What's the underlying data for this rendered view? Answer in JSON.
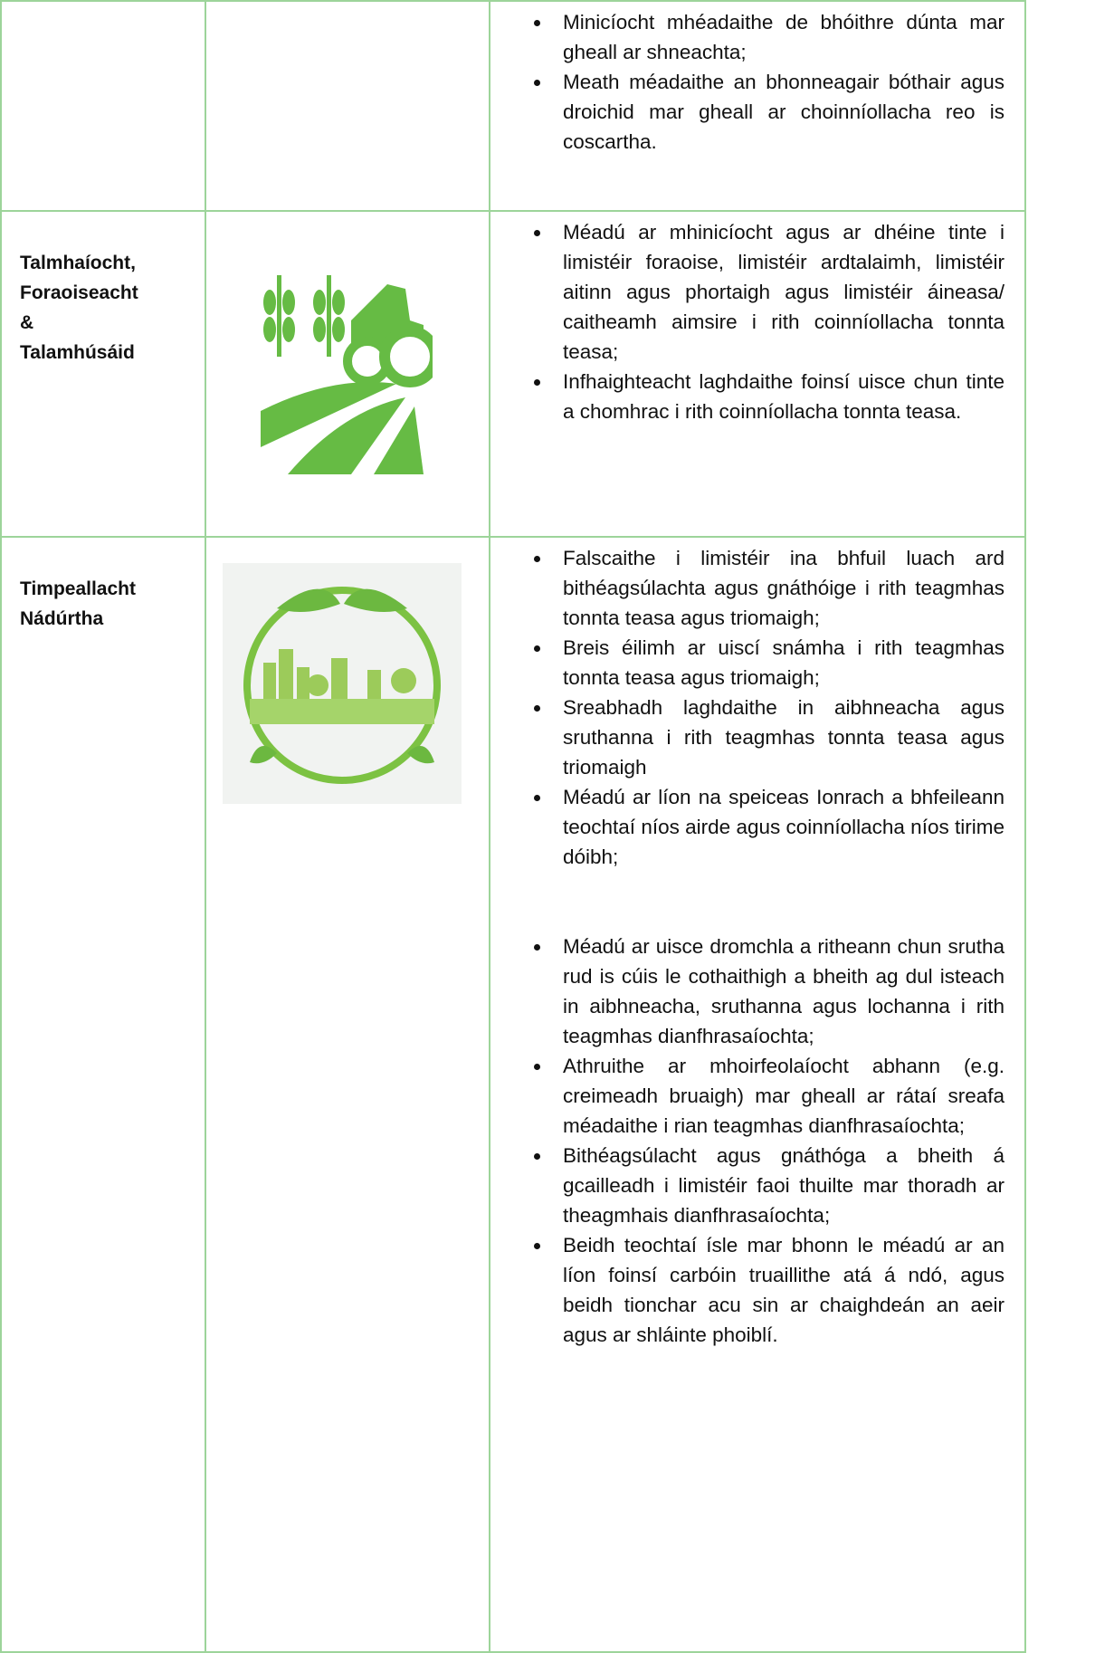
{
  "table": {
    "rows": [
      {
        "label_lines": [],
        "bullets": [
          "Minicíocht mhéadaithe de bhóithre dúnta mar gheall ar shneachta;",
          "Meath méadaithe an bhonneagair bóthair agus droichid mar gheall ar choinníollacha reo is coscartha."
        ]
      },
      {
        "label_lines": [
          "Talmhaíocht,",
          "Foraoiseacht",
          "&",
          "Talamhúsáid"
        ],
        "bullets": [
          "Méadú ar mhinicíocht agus ar dhéine tinte i limistéir foraoise, limistéir ardtalaimh, limistéir aitinn agus phortaigh agus limistéir áineasa/ caitheamh aimsire i rith coinníollacha tonnta teasa;",
          "Infhaighteacht laghdaithe foinsí uisce chun tinte a chomhrac i rith coinníollacha tonnta teasa."
        ]
      },
      {
        "label_lines": [
          "Timpeallacht",
          "Nádúrtha"
        ],
        "bullets": [
          "Falscaithe i limistéir ina bhfuil luach ard bithéagsúlachta agus gnáthóige i rith teagmhas tonnta teasa agus triomaigh;",
          "Breis éilimh ar uiscí snámha i rith teagmhas tonnta teasa agus triomaigh;",
          "Sreabhadh laghdaithe in aibhneacha agus sruthanna i rith teagmhas tonnta teasa agus triomaigh",
          "Méadú ar líon na speiceas Ionrach a bhfeileann teochtaí níos airde agus coinníollacha níos tirime dóibh;",
          "Méadú ar uisce dromchla a ritheann chun srutha rud is cúis le cothaithigh a bheith ag dul isteach in aibhneacha, sruthanna agus lochanna i rith teagmhas dianfhrasaíochta;",
          "Athruithe ar mhoirfeolaíocht abhann (e.g. creimeadh bruaigh) mar gheall ar rátaí sreafa méadaithe i rian teagmhas dianfhrasaíochta;",
          "Bithéagsúlacht agus gnáthóga a bheith á gcailleadh i limistéir faoi thuilte mar thoradh ar theagmhais dianfhrasaíochta;",
          "Beidh teochtaí ísle mar bhonn le méadú ar an líon foinsí carbóin truaillithe atá á ndó, agus beidh tionchar acu sin ar chaighdeán an aeir agus ar shláinte phoiblí."
        ]
      }
    ]
  }
}
